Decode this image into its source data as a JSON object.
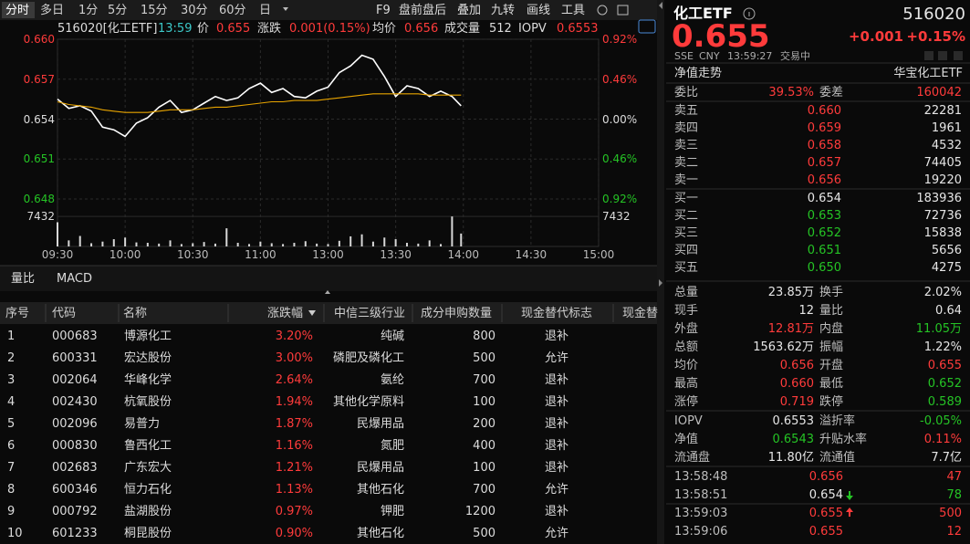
{
  "toolbar": {
    "periods": [
      "分时",
      "多日",
      "1分",
      "5分",
      "15分",
      "30分",
      "60分",
      "日"
    ],
    "tools": [
      "F9",
      "盘前盘后",
      "叠加",
      "九转",
      "画线",
      "工具"
    ]
  },
  "chart_header": {
    "security": "516020[化工ETF]",
    "time": "13:59",
    "price_label": "价",
    "price": "0.655",
    "change_label": "涨跌",
    "change": "0.001(0.15%)",
    "avg_label": "均价",
    "avg": "0.656",
    "volume_label": "成交量",
    "volume": "512",
    "iopv_label": "IOPV",
    "iopv": "0.6553"
  },
  "chart_data": {
    "type": "line",
    "x": [
      "09:30",
      "09:35",
      "09:40",
      "09:45",
      "09:50",
      "09:55",
      "10:00",
      "10:05",
      "10:10",
      "10:15",
      "10:20",
      "10:25",
      "10:30",
      "10:35",
      "10:40",
      "10:45",
      "10:50",
      "10:55",
      "11:00",
      "11:05",
      "11:10",
      "11:15",
      "11:20",
      "11:25",
      "11:30",
      "13:05",
      "13:10",
      "13:15",
      "13:20",
      "13:25",
      "13:30",
      "13:35",
      "13:40",
      "13:45",
      "13:50",
      "13:55",
      "13:59"
    ],
    "xlim": [
      "09:30",
      "15:00"
    ],
    "xticks": [
      "09:30",
      "10:00",
      "10:30",
      "11:00",
      "13:00",
      "13:30",
      "14:00",
      "14:30",
      "15:00"
    ],
    "ylim": [
      0.648,
      0.66
    ],
    "yticks": [
      {
        "value": 0.66,
        "label": "0.660",
        "pct": "0.92%",
        "color": "#ff3b3b"
      },
      {
        "value": 0.657,
        "label": "0.657",
        "pct": "0.46%",
        "color": "#ff3b3b"
      },
      {
        "value": 0.654,
        "label": "0.654",
        "pct": "0.00%",
        "color": "#dddddd"
      },
      {
        "value": 0.651,
        "label": "0.651",
        "pct": "0.46%",
        "color": "#25c425"
      },
      {
        "value": 0.648,
        "label": "0.648",
        "pct": "0.92%",
        "color": "#25c425"
      }
    ],
    "grid": true,
    "series": [
      {
        "color": "#ffffff",
        "values": [
          0.6555,
          0.6548,
          0.655,
          0.6546,
          0.6534,
          0.6532,
          0.6527,
          0.6537,
          0.6541,
          0.6549,
          0.6554,
          0.6545,
          0.6547,
          0.6552,
          0.6557,
          0.6554,
          0.6556,
          0.6563,
          0.6567,
          0.656,
          0.6563,
          0.6557,
          0.6556,
          0.6561,
          0.6564,
          0.6575,
          0.658,
          0.6588,
          0.6585,
          0.6572,
          0.6557,
          0.6565,
          0.6563,
          0.6557,
          0.6561,
          0.6557,
          0.655
        ]
      },
      {
        "color": "#e8a400",
        "values": [
          0.6553,
          0.6551,
          0.655,
          0.6549,
          0.6547,
          0.6546,
          0.6545,
          0.6545,
          0.6545,
          0.6546,
          0.6547,
          0.6547,
          0.6547,
          0.6548,
          0.6549,
          0.6549,
          0.655,
          0.6551,
          0.6552,
          0.6553,
          0.6553,
          0.6554,
          0.6554,
          0.6554,
          0.6555,
          0.6556,
          0.6557,
          0.6558,
          0.6559,
          0.6559,
          0.6559,
          0.6559,
          0.6559,
          0.6558,
          0.6558,
          0.6558,
          0.6558
        ]
      }
    ],
    "volume": {
      "color": "#d8d8d8",
      "ylim": [
        0,
        8600
      ],
      "yticks": [
        7432
      ],
      "values": [
        6000,
        1500,
        2600,
        800,
        1200,
        1800,
        2200,
        1000,
        900,
        700,
        1500,
        600,
        800,
        1100,
        700,
        4500,
        900,
        600,
        1200,
        800,
        600,
        900,
        1300,
        700,
        600,
        1400,
        2500,
        3000,
        1200,
        2200,
        1800,
        900,
        700,
        1500,
        600,
        7432,
        3200
      ]
    }
  },
  "sub_tabs": [
    "量比",
    "MACD"
  ],
  "table": {
    "columns": [
      "序号",
      "代码",
      "名称",
      "涨跌幅",
      "中信三级行业",
      "成分申购数量",
      "现金替代标志",
      "现金替"
    ],
    "pct_color": "#ff3b3b",
    "rows": [
      [
        "1",
        "000683",
        "博源化工",
        "3.20%",
        "纯碱",
        "800",
        "退补"
      ],
      [
        "2",
        "600331",
        "宏达股份",
        "3.00%",
        "磷肥及磷化工",
        "500",
        "允许"
      ],
      [
        "3",
        "002064",
        "华峰化学",
        "2.64%",
        "氨纶",
        "700",
        "退补"
      ],
      [
        "4",
        "002430",
        "杭氧股份",
        "1.94%",
        "其他化学原料",
        "100",
        "退补"
      ],
      [
        "5",
        "002096",
        "易普力",
        "1.87%",
        "民爆用品",
        "200",
        "退补"
      ],
      [
        "6",
        "000830",
        "鲁西化工",
        "1.16%",
        "氮肥",
        "400",
        "退补"
      ],
      [
        "7",
        "002683",
        "广东宏大",
        "1.21%",
        "民爆用品",
        "100",
        "退补"
      ],
      [
        "8",
        "600346",
        "恒力石化",
        "1.13%",
        "其他石化",
        "700",
        "允许"
      ],
      [
        "9",
        "000792",
        "盐湖股份",
        "0.97%",
        "钾肥",
        "1200",
        "退补"
      ],
      [
        "10",
        "601233",
        "桐昆股份",
        "0.90%",
        "其他石化",
        "500",
        "允许"
      ]
    ]
  },
  "quote": {
    "name": "化工ETF",
    "code": "516020",
    "price": "0.655",
    "change": "+0.001",
    "change_pct": "+0.15%",
    "meta": [
      "SSE",
      "CNY",
      "13:59:27",
      "交易中"
    ],
    "nav_tab": "净值走势",
    "fund_name": "华宝化工ETF",
    "committee": [
      [
        {
          "text": "委比"
        },
        {
          "text": "39.53%",
          "color": "#ff3b3b"
        },
        {
          "text": "委差"
        },
        {
          "text": "160042",
          "color": "#ff3b3b"
        }
      ]
    ],
    "asks": [
      [
        {
          "text": "卖五"
        },
        {
          "text": "0.660",
          "color": "#ff3b3b"
        },
        {
          "text": "22281"
        }
      ],
      [
        {
          "text": "卖四"
        },
        {
          "text": "0.659",
          "color": "#ff3b3b"
        },
        {
          "text": "1961"
        }
      ],
      [
        {
          "text": "卖三"
        },
        {
          "text": "0.658",
          "color": "#ff3b3b"
        },
        {
          "text": "4532"
        }
      ],
      [
        {
          "text": "卖二"
        },
        {
          "text": "0.657",
          "color": "#ff3b3b"
        },
        {
          "text": "74405"
        }
      ],
      [
        {
          "text": "卖一"
        },
        {
          "text": "0.656",
          "color": "#ff3b3b"
        },
        {
          "text": "19220"
        }
      ]
    ],
    "bids": [
      [
        {
          "text": "买一"
        },
        {
          "text": "0.654"
        },
        {
          "text": "183936"
        }
      ],
      [
        {
          "text": "买二"
        },
        {
          "text": "0.653",
          "color": "#25c425"
        },
        {
          "text": "72736"
        }
      ],
      [
        {
          "text": "买三"
        },
        {
          "text": "0.652",
          "color": "#25c425"
        },
        {
          "text": "15838"
        }
      ],
      [
        {
          "text": "买四"
        },
        {
          "text": "0.651",
          "color": "#25c425"
        },
        {
          "text": "5656"
        }
      ],
      [
        {
          "text": "买五"
        },
        {
          "text": "0.650",
          "color": "#25c425"
        },
        {
          "text": "4275"
        }
      ]
    ],
    "stats": [
      [
        {
          "text": "总量"
        },
        {
          "text": "23.85万"
        },
        {
          "text": "换手"
        },
        {
          "text": "2.02%"
        }
      ],
      [
        {
          "text": "现手"
        },
        {
          "text": "12"
        },
        {
          "text": "量比"
        },
        {
          "text": "0.64"
        }
      ],
      [
        {
          "text": "外盘"
        },
        {
          "text": "12.81万",
          "color": "#ff3b3b"
        },
        {
          "text": "内盘"
        },
        {
          "text": "11.05万",
          "color": "#25c425"
        }
      ],
      [
        {
          "text": "总额"
        },
        {
          "text": "1563.62万"
        },
        {
          "text": "振幅"
        },
        {
          "text": "1.22%"
        }
      ],
      [
        {
          "text": "均价"
        },
        {
          "text": "0.656",
          "color": "#ff3b3b"
        },
        {
          "text": "开盘"
        },
        {
          "text": "0.655",
          "color": "#ff3b3b"
        }
      ],
      [
        {
          "text": "最高"
        },
        {
          "text": "0.660",
          "color": "#ff3b3b"
        },
        {
          "text": "最低"
        },
        {
          "text": "0.652",
          "color": "#25c425"
        }
      ],
      [
        {
          "text": "涨停"
        },
        {
          "text": "0.719",
          "color": "#ff3b3b"
        },
        {
          "text": "跌停"
        },
        {
          "text": "0.589",
          "color": "#25c425"
        }
      ]
    ],
    "nav": [
      [
        {
          "text": "IOPV"
        },
        {
          "text": "0.6553"
        },
        {
          "text": "溢折率"
        },
        {
          "text": "-0.05%",
          "color": "#25c425"
        }
      ],
      [
        {
          "text": "净值"
        },
        {
          "text": "0.6543",
          "color": "#25c425"
        },
        {
          "text": "升贴水率"
        },
        {
          "text": "0.11%",
          "color": "#ff3b3b"
        }
      ],
      [
        {
          "text": "流通盘"
        },
        {
          "text": "11.80亿"
        },
        {
          "text": "流通值"
        },
        {
          "text": "7.7亿"
        }
      ]
    ],
    "trades": [
      [
        {
          "text": "13:58:48"
        },
        {
          "text": "0.656",
          "color": "#ff3b3b"
        },
        {
          "text": "47",
          "color": "#ff3b3b"
        }
      ],
      [
        {
          "text": "13:58:51"
        },
        {
          "text": "0.654",
          "arrow": "down"
        },
        {
          "text": "78",
          "color": "#25c425"
        }
      ],
      [
        {
          "text": "13:59:03"
        },
        {
          "text": "0.655",
          "color": "#ff3b3b",
          "arrow": "up"
        },
        {
          "text": "500",
          "color": "#ff3b3b"
        }
      ],
      [
        {
          "text": "13:59:06"
        },
        {
          "text": "0.655",
          "color": "#ff3b3b"
        },
        {
          "text": "12",
          "color": "#ff3b3b"
        }
      ]
    ]
  }
}
